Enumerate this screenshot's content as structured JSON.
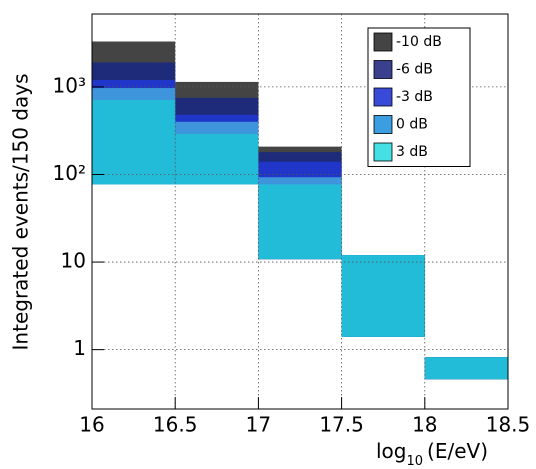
{
  "chart_data": {
    "type": "histogram",
    "x_label_base": "log",
    "x_label_sub": "10",
    "x_label_rest": "(E/eV)",
    "y_label": "Integrated events/150 days",
    "bins": [
      16,
      16.5,
      17,
      17.5,
      18,
      18.5
    ],
    "bar_bottoms": [
      77,
      77,
      10.8,
      1.4,
      0.46
    ],
    "series": [
      {
        "name": "-10 dB",
        "color": "#444444",
        "values": [
          3300,
          1140,
          208,
          12,
          0.82
        ]
      },
      {
        "name": "-6 dB",
        "color": "#1e2a7a",
        "values": [
          1900,
          750,
          180,
          12,
          0.82
        ]
      },
      {
        "name": "-3 dB",
        "color": "#2036c8",
        "values": [
          1200,
          480,
          140,
          12,
          0.82
        ]
      },
      {
        "name": "0 dB",
        "color": "#3f95dc",
        "values": [
          970,
          400,
          93,
          12,
          0.82
        ]
      },
      {
        "name": "3 dB",
        "color": "#22bcd8",
        "values": [
          710,
          290,
          77,
          12,
          0.82
        ]
      }
    ],
    "legend_colors": [
      "#444444",
      "#3a3f8e",
      "#3a4ad8",
      "#3a9ee0",
      "#44e0e4"
    ],
    "xlim": [
      16,
      18.5
    ],
    "xticks": [
      16,
      16.5,
      17,
      17.5,
      18,
      18.5
    ],
    "ylim": [
      0.21,
      6800
    ],
    "log_y": true,
    "yticks": [
      1,
      10,
      {
        "value": 100,
        "label": "10²"
      },
      {
        "value": 1000,
        "label": "10³"
      }
    ],
    "grid": true,
    "legend": "top-right"
  }
}
